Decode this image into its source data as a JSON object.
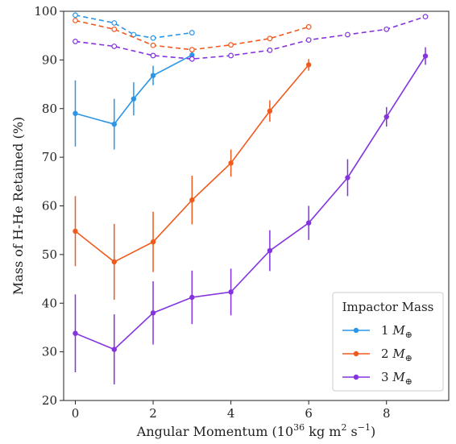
{
  "chart_data": {
    "type": "line",
    "title": "",
    "xlabel": "Angular Momentum (10^36 kg m^2 s^-1)",
    "xlabel_parts": {
      "prefix": "Angular Momentum (10",
      "exp1": "36",
      "middle": " kg m",
      "exp2": "2",
      "after": " s",
      "exp3": "−1",
      "suffix": ")"
    },
    "ylabel": "Mass of H-He Retained (%)",
    "xlim": [
      -0.3,
      9.6
    ],
    "ylim": [
      20,
      100
    ],
    "xticks": [
      0,
      2,
      4,
      6,
      8
    ],
    "yticks": [
      20,
      30,
      40,
      50,
      60,
      70,
      80,
      90,
      100
    ],
    "grid": false,
    "legend": {
      "title": "Impactor Mass",
      "placement": "lower-right"
    },
    "series": [
      {
        "name": "1 M⊕",
        "legend_number": "1",
        "color": "#2b95e8",
        "style": "solid",
        "x": [
          0,
          1,
          1.5,
          2,
          3
        ],
        "y": [
          79,
          76.8,
          82,
          86.8,
          91
        ],
        "yerr": [
          6.8,
          5.2,
          3.4,
          2.0,
          1.2
        ]
      },
      {
        "name": "2 M⊕",
        "legend_number": "2",
        "color": "#f05a1e",
        "style": "solid",
        "x": [
          0,
          1,
          2,
          3,
          4,
          5,
          6
        ],
        "y": [
          54.8,
          48.5,
          52.6,
          61.2,
          68.8,
          79.5,
          89
        ],
        "yerr": [
          7.2,
          7.8,
          6.2,
          5.0,
          2.8,
          2.2,
          1.2
        ]
      },
      {
        "name": "3 M⊕",
        "legend_number": "3",
        "color": "#8433de",
        "style": "solid",
        "x": [
          0,
          1,
          2,
          3,
          4,
          5,
          6,
          7,
          8,
          9
        ],
        "y": [
          33.8,
          30.5,
          38,
          41.2,
          42.3,
          50.8,
          56.5,
          65.8,
          78.3,
          90.8
        ],
        "yerr": [
          8.0,
          7.2,
          6.5,
          5.5,
          4.8,
          4.2,
          3.5,
          3.8,
          2.0,
          1.8
        ]
      },
      {
        "color": "#2b95e8",
        "style": "dashed",
        "marker": "open-circle",
        "x": [
          0,
          1,
          1.5,
          2,
          3
        ],
        "y": [
          99.2,
          97.6,
          95.2,
          94.5,
          95.6
        ]
      },
      {
        "color": "#f05a1e",
        "style": "dashed",
        "marker": "open-circle",
        "x": [
          0,
          1,
          2,
          3,
          4,
          5,
          6
        ],
        "y": [
          98.1,
          96.3,
          93.0,
          92.1,
          93.1,
          94.4,
          96.8
        ]
      },
      {
        "color": "#8433de",
        "style": "dashed",
        "marker": "open-circle",
        "x": [
          0,
          1,
          2,
          3,
          4,
          5,
          6,
          7,
          8,
          9
        ],
        "y": [
          93.8,
          92.8,
          90.9,
          90.2,
          90.9,
          92.0,
          94.1,
          95.2,
          96.3,
          98.9
        ]
      }
    ]
  }
}
